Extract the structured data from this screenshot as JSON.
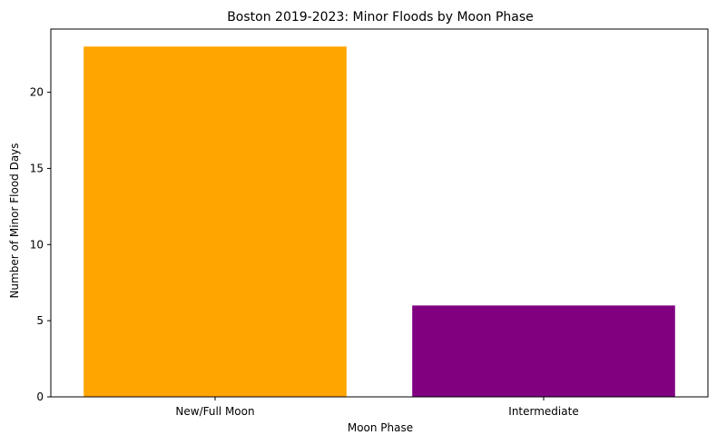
{
  "chart_data": {
    "type": "bar",
    "title": "Boston 2019-2023: Minor Floods by Moon Phase",
    "xlabel": "Moon Phase",
    "ylabel": "Number of Minor Flood Days",
    "categories": [
      "New/Full Moon",
      "Intermediate"
    ],
    "values": [
      23,
      6
    ],
    "colors": [
      "#ffa500",
      "#800080"
    ],
    "ylim": [
      0,
      24.15
    ],
    "yticks": [
      0,
      5,
      10,
      15,
      20
    ],
    "grid": false,
    "legend": "none"
  }
}
